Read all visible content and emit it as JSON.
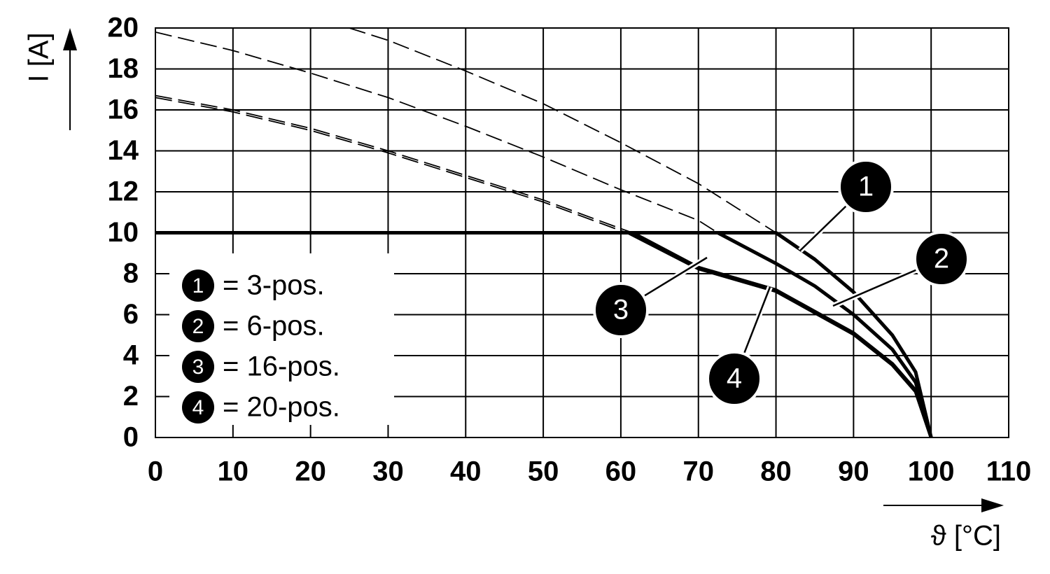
{
  "chart_data": {
    "type": "line",
    "x_label": "ϑ [°C]",
    "y_label": "I [A]",
    "xlim": [
      0,
      110
    ],
    "ylim": [
      0,
      20
    ],
    "xticks": [
      0,
      10,
      20,
      30,
      40,
      50,
      60,
      70,
      80,
      90,
      100,
      110
    ],
    "yticks": [
      0,
      2,
      4,
      6,
      8,
      10,
      12,
      14,
      16,
      18,
      20
    ],
    "grid": true,
    "series": [
      {
        "name": "= 3-pos.",
        "label": "1",
        "color": "#000000",
        "x": [
          25,
          30,
          40,
          50,
          60,
          70,
          80
        ],
        "values": [
          20,
          19.4,
          17.9,
          16.3,
          14.4,
          12.4,
          10
        ],
        "derated_x": [
          0,
          80,
          85,
          90,
          95,
          98,
          100
        ],
        "derated_values": [
          10,
          10,
          8.7,
          7.1,
          5,
          3.2,
          0
        ]
      },
      {
        "name": "= 6-pos.",
        "label": "2",
        "color": "#000000",
        "x": [
          0,
          10,
          20,
          30,
          40,
          50,
          60,
          70,
          72.5
        ],
        "values": [
          19.8,
          18.9,
          17.8,
          16.6,
          15.2,
          13.7,
          12.1,
          10.6,
          10
        ],
        "derated_x": [
          0,
          72.5,
          80,
          85,
          90,
          95,
          98,
          100
        ],
        "derated_values": [
          10,
          10,
          8.5,
          7.4,
          6,
          4.3,
          2.7,
          0
        ]
      },
      {
        "name": "= 16-pos.",
        "label": "3",
        "color": "#000000",
        "x": [
          0,
          10,
          20,
          30,
          40,
          50,
          60,
          61.5
        ],
        "values": [
          16.7,
          16,
          15.1,
          14,
          12.8,
          11.6,
          10.2,
          10
        ],
        "derated_x": [
          0,
          61.5,
          70,
          80,
          90,
          95,
          98,
          100
        ],
        "derated_values": [
          10,
          10,
          8.3,
          7.2,
          5.1,
          3.6,
          2.3,
          0
        ]
      },
      {
        "name": "= 20-pos.",
        "label": "4",
        "color": "#000000",
        "x": [
          0,
          10,
          20,
          30,
          40,
          50,
          60,
          61
        ],
        "values": [
          16.6,
          15.9,
          15,
          13.9,
          12.7,
          11.5,
          10.1,
          10
        ],
        "derated_x": [
          0,
          61,
          70,
          80,
          90,
          95,
          98,
          100
        ],
        "derated_values": [
          10,
          10,
          8.25,
          7.15,
          5.05,
          3.55,
          2.25,
          0
        ]
      }
    ]
  }
}
